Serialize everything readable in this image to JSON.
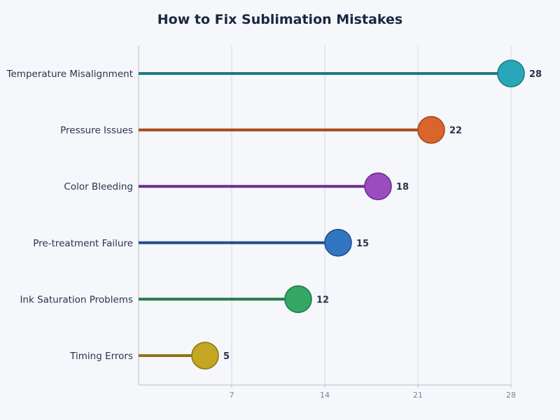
{
  "chart_data": {
    "type": "lollipop",
    "title": "How to Fix Sublimation Mistakes",
    "categories": [
      "Temperature Misalignment",
      "Pressure Issues",
      "Color Bleeding",
      "Pre-treatment Failure",
      "Ink Saturation Problems",
      "Timing Errors"
    ],
    "values": [
      28,
      22,
      18,
      15,
      12,
      5
    ],
    "colors": [
      "#28a7b9",
      "#d9652c",
      "#9b4dbf",
      "#3276c2",
      "#34a862",
      "#c4a622"
    ],
    "stroke_colors": [
      "#1f7a80",
      "#a8461f",
      "#6e2f8a",
      "#214f87",
      "#24784a",
      "#8d7611"
    ],
    "xlim": [
      0,
      28
    ],
    "x_ticks": [
      7,
      14,
      21,
      28
    ],
    "grid": true,
    "xlabel": "",
    "ylabel": ""
  }
}
